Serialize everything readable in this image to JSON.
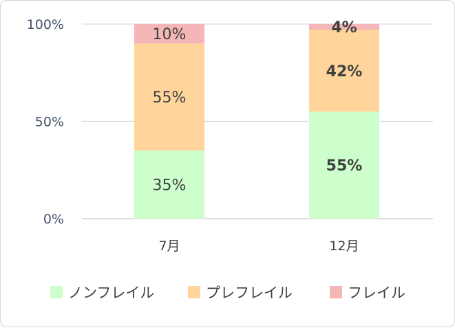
{
  "chart_data": {
    "type": "bar",
    "stacked": true,
    "percent": true,
    "categories": [
      "7月",
      "12月"
    ],
    "series": [
      {
        "name": "ノンフレイル",
        "values": [
          35,
          55
        ],
        "labels": [
          "35%",
          "55%"
        ],
        "color": "#ccffcc"
      },
      {
        "name": "プレフレイル",
        "values": [
          55,
          42
        ],
        "labels": [
          "55%",
          "42%"
        ],
        "color": "#ffd59b"
      },
      {
        "name": "フレイル",
        "values": [
          10,
          4
        ],
        "labels": [
          "10%",
          "4%"
        ],
        "color": "#f4b6b6"
      }
    ],
    "bold_category": "12月",
    "y_ticks": [
      "0%",
      "50%",
      "100%"
    ],
    "ylim": [
      0,
      100
    ],
    "grid": true,
    "legend_position": "bottom"
  }
}
